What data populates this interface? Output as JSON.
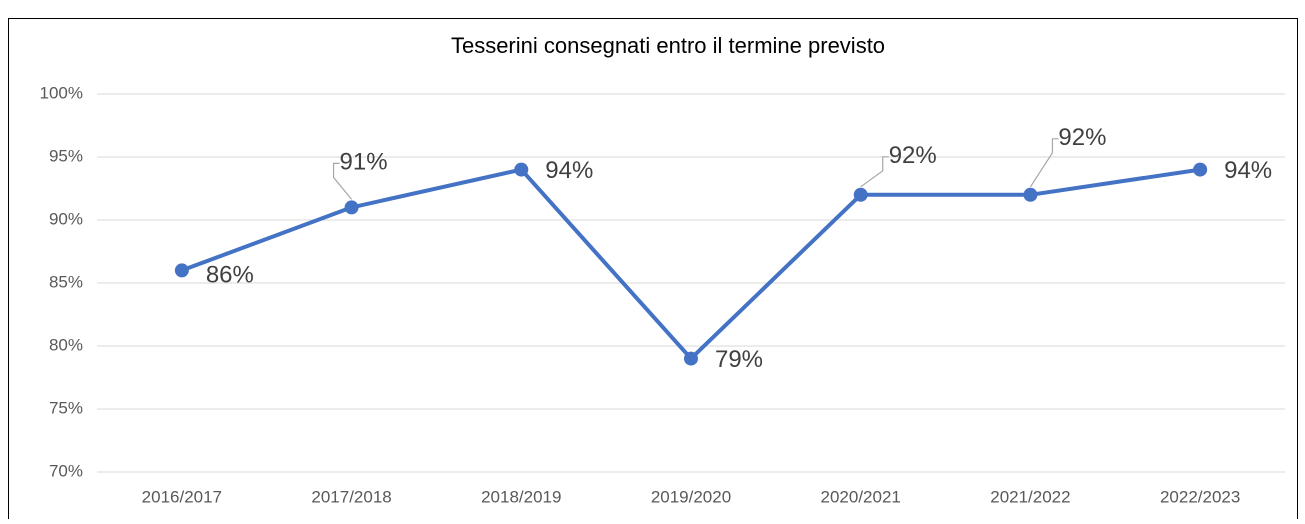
{
  "chart_data": {
    "type": "line",
    "title": "Tesserini consegnati entro il termine previsto",
    "categories": [
      "2016/2017",
      "2017/2018",
      "2018/2019",
      "2019/2020",
      "2020/2021",
      "2021/2022",
      "2022/2023"
    ],
    "series": [
      {
        "color": "#4472c4",
        "values": [
          86,
          91,
          94,
          79,
          92,
          92,
          94
        ],
        "value_labels": [
          "86%",
          "91%",
          "94%",
          "79%",
          "92%",
          "92%",
          "94%"
        ]
      }
    ],
    "ylim": [
      70,
      100
    ],
    "yticks": [
      {
        "value": 70,
        "label": "70%"
      },
      {
        "value": 75,
        "label": "75%"
      },
      {
        "value": 80,
        "label": "80%"
      },
      {
        "value": 85,
        "label": "85%"
      },
      {
        "value": 90,
        "label": "90%"
      },
      {
        "value": 95,
        "label": "95%"
      },
      {
        "value": 100,
        "label": "100%"
      }
    ],
    "grid": true
  }
}
